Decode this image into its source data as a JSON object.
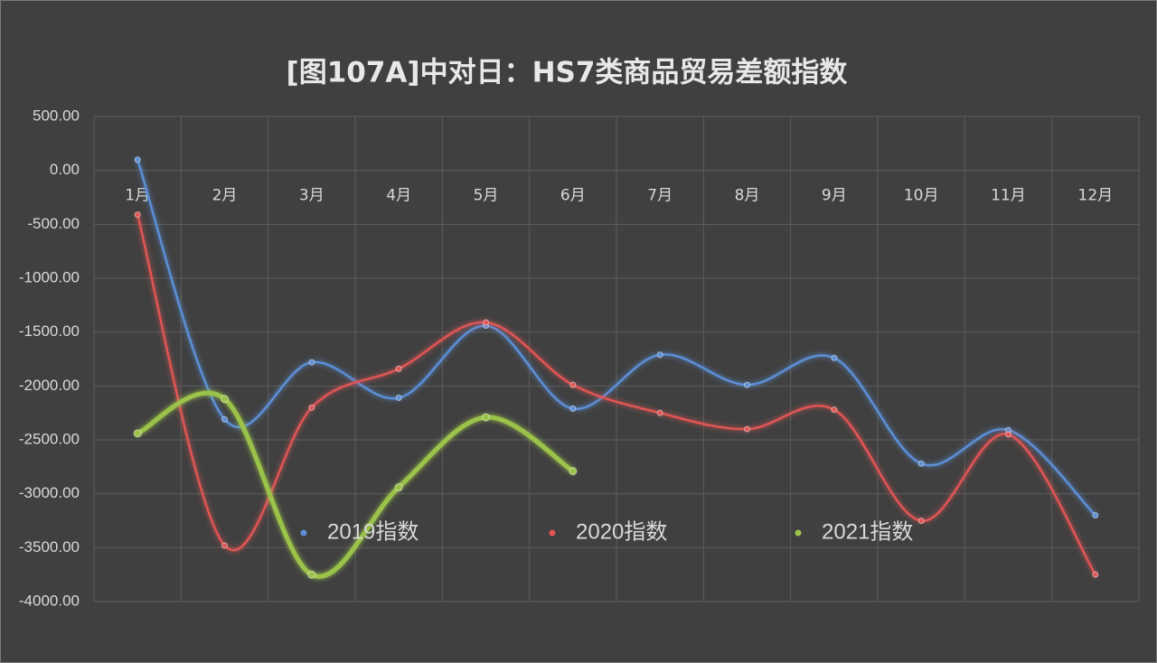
{
  "chart_data": {
    "type": "line",
    "title": "[图107A]中对日：HS7类商品贸易差额指数",
    "categories": [
      "1月",
      "2月",
      "3月",
      "4月",
      "5月",
      "6月",
      "7月",
      "8月",
      "9月",
      "10月",
      "11月",
      "12月"
    ],
    "series": [
      {
        "name": "2019指数",
        "color": "#5b8fd6",
        "values": [
          100,
          -2310,
          -1780,
          -2110,
          -1440,
          -2210,
          -1710,
          -1990,
          -1740,
          -2720,
          -2410,
          -3200
        ]
      },
      {
        "name": "2020指数",
        "color": "#e05555",
        "values": [
          -410,
          -3480,
          -2200,
          -1840,
          -1410,
          -1990,
          -2250,
          -2400,
          -2220,
          -3250,
          -2450,
          -3750
        ]
      },
      {
        "name": "2021指数",
        "color": "#9bc34a",
        "values": [
          -2440,
          -2120,
          -3750,
          -2940,
          -2290,
          -2790,
          null,
          null,
          null,
          null,
          null,
          null
        ]
      }
    ],
    "ylim": [
      -4000,
      500
    ],
    "yticks": [
      {
        "value": -4000,
        "label": "-4000.00"
      },
      {
        "value": -3500,
        "label": "-3500.00"
      },
      {
        "value": -3000,
        "label": "-3000.00"
      },
      {
        "value": -2500,
        "label": "-2500.00"
      },
      {
        "value": -2000,
        "label": "-2000.00"
      },
      {
        "value": -1500,
        "label": "-1500.00"
      },
      {
        "value": -1000,
        "label": "-1000.00"
      },
      {
        "value": -500,
        "label": "-500.00"
      },
      {
        "value": 0,
        "label": "0.00"
      },
      {
        "value": 500,
        "label": "500.00"
      }
    ],
    "grid": true,
    "smooth": true,
    "legend": "bottom"
  }
}
